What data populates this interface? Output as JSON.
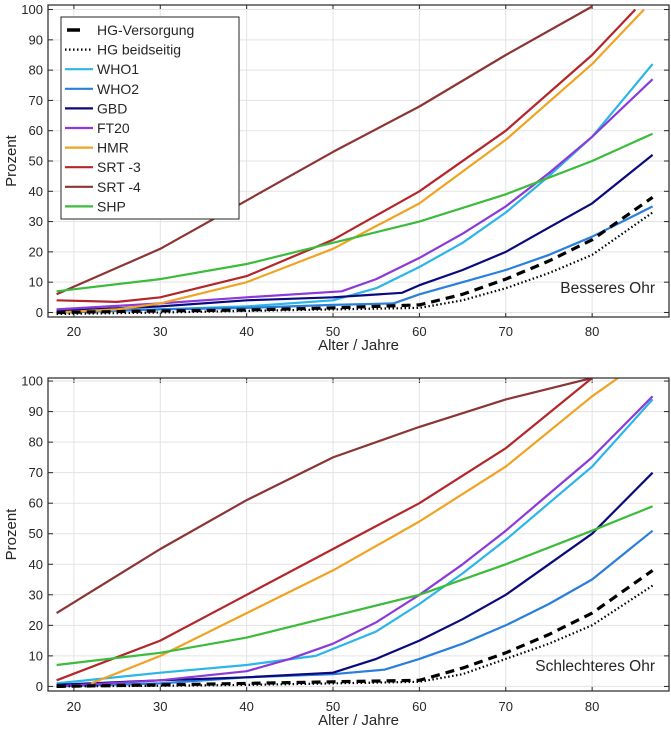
{
  "legend": [
    {
      "name": "HG-Versorgung",
      "color": "#000000",
      "style": "dash"
    },
    {
      "name": "HG beidseitig",
      "color": "#000000",
      "style": "dot"
    },
    {
      "name": "WHO1",
      "color": "#2cb5e8",
      "style": "solid"
    },
    {
      "name": "WHO2",
      "color": "#2a7fdc",
      "style": "solid"
    },
    {
      "name": "GBD",
      "color": "#0a0a7c",
      "style": "solid"
    },
    {
      "name": "FT20",
      "color": "#8b3ad9",
      "style": "solid"
    },
    {
      "name": "HMR",
      "color": "#f0a322",
      "style": "solid"
    },
    {
      "name": "SRT -3",
      "color": "#b3262a",
      "style": "solid"
    },
    {
      "name": "SRT -4",
      "color": "#8c3535",
      "style": "solid"
    },
    {
      "name": "SHP",
      "color": "#3dbb3d",
      "style": "solid"
    }
  ],
  "chart_data": [
    {
      "type": "line",
      "annotation": "Besseres Ohr",
      "xlabel": "Alter / Jahre",
      "ylabel": "Prozent",
      "xlim": [
        17,
        88.9
      ],
      "ylim": [
        -1.5,
        101.5
      ],
      "xticks": [
        20,
        30,
        40,
        50,
        60,
        70,
        80
      ],
      "yticks": [
        0,
        10,
        20,
        30,
        40,
        50,
        60,
        70,
        80,
        90,
        100
      ],
      "grid": true,
      "legend_position": "top-left",
      "series": [
        {
          "name": "HG-Versorgung",
          "x": [
            18,
            30,
            40,
            50,
            60,
            65,
            70,
            75,
            80,
            87
          ],
          "y": [
            0,
            0.5,
            0.8,
            1.5,
            2.5,
            6,
            11,
            17,
            24,
            38
          ]
        },
        {
          "name": "HG beidseitig",
          "x": [
            18,
            30,
            40,
            50,
            60,
            65,
            70,
            75,
            80,
            87
          ],
          "y": [
            -0.5,
            0,
            0.5,
            1,
            1.5,
            4,
            8,
            13,
            19,
            33
          ]
        },
        {
          "name": "WHO1",
          "x": [
            18,
            30,
            40,
            50,
            55,
            60,
            65,
            70,
            75,
            80,
            87
          ],
          "y": [
            0,
            1,
            2,
            4,
            8,
            15,
            23,
            33,
            45,
            58,
            82
          ]
        },
        {
          "name": "WHO2",
          "x": [
            18,
            30,
            40,
            50,
            57,
            60,
            65,
            70,
            75,
            80,
            87
          ],
          "y": [
            0,
            1,
            1.5,
            2.5,
            3,
            6,
            10,
            14,
            19,
            25,
            35
          ]
        },
        {
          "name": "GBD",
          "x": [
            18,
            30,
            40,
            50,
            58,
            60,
            65,
            70,
            75,
            80,
            87
          ],
          "y": [
            0.5,
            2,
            4,
            5,
            6.5,
            9,
            14,
            20,
            28,
            36,
            52
          ]
        },
        {
          "name": "FT20",
          "x": [
            18,
            30,
            40,
            51,
            55,
            60,
            65,
            70,
            75,
            80,
            87
          ],
          "y": [
            1,
            3,
            5,
            7,
            11,
            18,
            26,
            35,
            46,
            58,
            77
          ]
        },
        {
          "name": "HMR",
          "x": [
            18,
            25,
            30,
            40,
            50,
            60,
            70,
            80,
            86
          ],
          "y": [
            0,
            1,
            3,
            10,
            21,
            36,
            57,
            82,
            100
          ]
        },
        {
          "name": "SRT -3",
          "x": [
            18,
            25,
            30,
            40,
            50,
            60,
            70,
            80,
            85
          ],
          "y": [
            4,
            3.5,
            5,
            12,
            24,
            40,
            60,
            85,
            100
          ]
        },
        {
          "name": "SRT -4",
          "x": [
            18,
            30,
            40,
            50,
            60,
            70,
            80
          ],
          "y": [
            6,
            21,
            37,
            53,
            68,
            85,
            101
          ]
        },
        {
          "name": "SHP",
          "x": [
            18,
            30,
            40,
            50,
            60,
            70,
            80,
            87
          ],
          "y": [
            7,
            11,
            16,
            23,
            30,
            39,
            50,
            59
          ]
        }
      ]
    },
    {
      "type": "line",
      "annotation": "Schlechteres Ohr",
      "xlabel": "Alter / Jahre",
      "ylabel": "Prozent",
      "xlim": [
        17,
        88.9
      ],
      "ylim": [
        -1.5,
        101
      ],
      "xticks": [
        20,
        30,
        40,
        50,
        60,
        70,
        80
      ],
      "yticks": [
        0,
        10,
        20,
        30,
        40,
        50,
        60,
        70,
        80,
        90,
        100
      ],
      "grid": true,
      "series": [
        {
          "name": "HG-Versorgung",
          "x": [
            18,
            30,
            40,
            50,
            60,
            65,
            70,
            75,
            80,
            87
          ],
          "y": [
            0,
            0.5,
            1,
            1.5,
            2,
            6,
            11,
            17,
            24,
            38
          ]
        },
        {
          "name": "HG beidseitig",
          "x": [
            18,
            30,
            40,
            50,
            60,
            65,
            70,
            75,
            80,
            87
          ],
          "y": [
            0,
            0.2,
            0.5,
            1,
            1.5,
            4,
            9,
            14,
            20,
            33
          ]
        },
        {
          "name": "WHO1",
          "x": [
            18,
            30,
            40,
            48,
            55,
            60,
            65,
            70,
            75,
            80,
            87
          ],
          "y": [
            1,
            4.5,
            7,
            10,
            18,
            27,
            37,
            48,
            60,
            72,
            94
          ]
        },
        {
          "name": "WHO2",
          "x": [
            18,
            30,
            40,
            50,
            56,
            60,
            65,
            70,
            75,
            80,
            87
          ],
          "y": [
            0,
            1,
            3,
            4,
            5.5,
            9,
            14,
            20,
            27,
            35,
            51
          ]
        },
        {
          "name": "GBD",
          "x": [
            18,
            30,
            40,
            50,
            55,
            60,
            65,
            70,
            75,
            80,
            87
          ],
          "y": [
            0.5,
            2,
            3,
            4.5,
            9,
            15,
            22,
            30,
            40,
            50,
            70
          ]
        },
        {
          "name": "FT20",
          "x": [
            18,
            30,
            40,
            45,
            50,
            55,
            60,
            65,
            70,
            75,
            80,
            87
          ],
          "y": [
            0,
            2,
            5,
            9,
            14,
            21,
            30,
            40,
            51,
            63,
            75,
            95
          ]
        },
        {
          "name": "HMR",
          "x": [
            22,
            30,
            40,
            50,
            60,
            70,
            80,
            83
          ],
          "y": [
            1,
            10,
            24,
            38,
            54,
            72,
            95,
            101
          ]
        },
        {
          "name": "SRT -3",
          "x": [
            18,
            30,
            40,
            50,
            60,
            70,
            80
          ],
          "y": [
            2,
            15,
            30,
            45,
            60,
            78,
            101
          ]
        },
        {
          "name": "SRT -4",
          "x": [
            18,
            30,
            40,
            50,
            60,
            70,
            80
          ],
          "y": [
            24,
            45,
            61,
            75,
            85,
            94,
            101
          ]
        },
        {
          "name": "SHP",
          "x": [
            18,
            30,
            40,
            50,
            60,
            70,
            80,
            87
          ],
          "y": [
            7,
            11,
            16,
            23,
            30,
            40,
            51,
            59
          ]
        }
      ]
    }
  ]
}
